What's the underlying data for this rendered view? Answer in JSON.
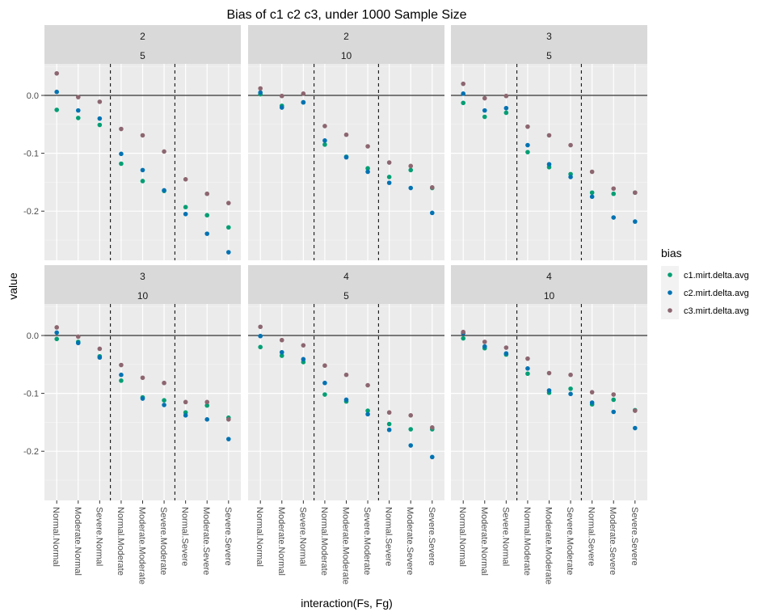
{
  "chart_data": {
    "type": "scatter",
    "title": "Bias of c1 c2 c3, under 1000 Sample Size",
    "xlabel": "interaction(Fs, Fg)",
    "ylabel": "value",
    "legend_title": "bias",
    "legend_position": "right",
    "grid": true,
    "categories": [
      "Normal.Normal",
      "Moderate.Normal",
      "Severe.Normal",
      "Normal.Moderate",
      "Moderate.Moderate",
      "Severe.Moderate",
      "Normal.Severe",
      "Moderate.Severe",
      "Severe.Severe"
    ],
    "y_ticks": [
      "0.0",
      "-0.1",
      "-0.2"
    ],
    "ylim": [
      -0.283,
      0.055
    ],
    "hlines": [
      0
    ],
    "vlines_between": [
      3,
      6
    ],
    "series_meta": [
      {
        "name": "c1.mirt.delta.avg",
        "color": "#009E73"
      },
      {
        "name": "c2.mirt.delta.avg",
        "color": "#0072B2"
      },
      {
        "name": "c3.mirt.delta.avg",
        "color": "#8C6670"
      }
    ],
    "panels": [
      {
        "strip_top": "2",
        "strip_bottom": "5",
        "series": [
          {
            "name": "c1.mirt.delta.avg",
            "values": [
              -0.025,
              -0.039,
              -0.051,
              -0.118,
              -0.148,
              -0.165,
              -0.193,
              -0.207,
              -0.228
            ]
          },
          {
            "name": "c2.mirt.delta.avg",
            "values": [
              0.006,
              -0.026,
              -0.04,
              -0.101,
              -0.129,
              -0.164,
              -0.205,
              -0.239,
              -0.271
            ]
          },
          {
            "name": "c3.mirt.delta.avg",
            "values": [
              0.038,
              -0.003,
              -0.011,
              -0.058,
              -0.069,
              -0.097,
              -0.145,
              -0.17,
              -0.186
            ]
          }
        ]
      },
      {
        "strip_top": "2",
        "strip_bottom": "10",
        "series": [
          {
            "name": "c1.mirt.delta.avg",
            "values": [
              0.002,
              -0.018,
              -0.012,
              -0.085,
              -0.106,
              -0.126,
              -0.141,
              -0.129,
              -0.16
            ]
          },
          {
            "name": "c2.mirt.delta.avg",
            "values": [
              0.005,
              -0.021,
              -0.012,
              -0.078,
              -0.107,
              -0.132,
              -0.151,
              -0.16,
              -0.203
            ]
          },
          {
            "name": "c3.mirt.delta.avg",
            "values": [
              0.012,
              -0.001,
              0.003,
              -0.053,
              -0.068,
              -0.088,
              -0.116,
              -0.122,
              -0.159
            ]
          }
        ]
      },
      {
        "strip_top": "3",
        "strip_bottom": "5",
        "series": [
          {
            "name": "c1.mirt.delta.avg",
            "values": [
              -0.013,
              -0.037,
              -0.03,
              -0.098,
              -0.124,
              -0.136,
              -0.168,
              -0.17,
              -0.168
            ]
          },
          {
            "name": "c2.mirt.delta.avg",
            "values": [
              0.003,
              -0.026,
              -0.022,
              -0.086,
              -0.119,
              -0.141,
              -0.175,
              -0.211,
              -0.218
            ]
          },
          {
            "name": "c3.mirt.delta.avg",
            "values": [
              0.02,
              -0.005,
              -0.001,
              -0.054,
              -0.069,
              -0.086,
              -0.132,
              -0.161,
              -0.168
            ]
          }
        ]
      },
      {
        "strip_top": "3",
        "strip_bottom": "10",
        "series": [
          {
            "name": "c1.mirt.delta.avg",
            "values": [
              -0.006,
              -0.011,
              -0.036,
              -0.078,
              -0.107,
              -0.112,
              -0.133,
              -0.121,
              -0.142
            ]
          },
          {
            "name": "c2.mirt.delta.avg",
            "values": [
              0.005,
              -0.013,
              -0.038,
              -0.068,
              -0.109,
              -0.12,
              -0.138,
              -0.145,
              -0.179
            ]
          },
          {
            "name": "c3.mirt.delta.avg",
            "values": [
              0.014,
              -0.002,
              -0.023,
              -0.051,
              -0.073,
              -0.082,
              -0.115,
              -0.115,
              -0.145
            ]
          }
        ]
      },
      {
        "strip_top": "4",
        "strip_bottom": "5",
        "series": [
          {
            "name": "c1.mirt.delta.avg",
            "values": [
              -0.02,
              -0.035,
              -0.046,
              -0.102,
              -0.114,
              -0.13,
              -0.153,
              -0.162,
              -0.162
            ]
          },
          {
            "name": "c2.mirt.delta.avg",
            "values": [
              -0.001,
              -0.029,
              -0.041,
              -0.082,
              -0.111,
              -0.136,
              -0.163,
              -0.19,
              -0.21
            ]
          },
          {
            "name": "c3.mirt.delta.avg",
            "values": [
              0.015,
              -0.008,
              -0.017,
              -0.052,
              -0.068,
              -0.086,
              -0.133,
              -0.138,
              -0.159
            ]
          }
        ]
      },
      {
        "strip_top": "4",
        "strip_bottom": "10",
        "series": [
          {
            "name": "c1.mirt.delta.avg",
            "values": [
              -0.005,
              -0.022,
              -0.033,
              -0.066,
              -0.099,
              -0.092,
              -0.119,
              -0.111,
              -0.129
            ]
          },
          {
            "name": "c2.mirt.delta.avg",
            "values": [
              0.004,
              -0.019,
              -0.031,
              -0.057,
              -0.095,
              -0.101,
              -0.116,
              -0.132,
              -0.16
            ]
          },
          {
            "name": "c3.mirt.delta.avg",
            "values": [
              0.006,
              -0.011,
              -0.021,
              -0.04,
              -0.065,
              -0.068,
              -0.098,
              -0.102,
              -0.13
            ]
          }
        ]
      }
    ]
  }
}
